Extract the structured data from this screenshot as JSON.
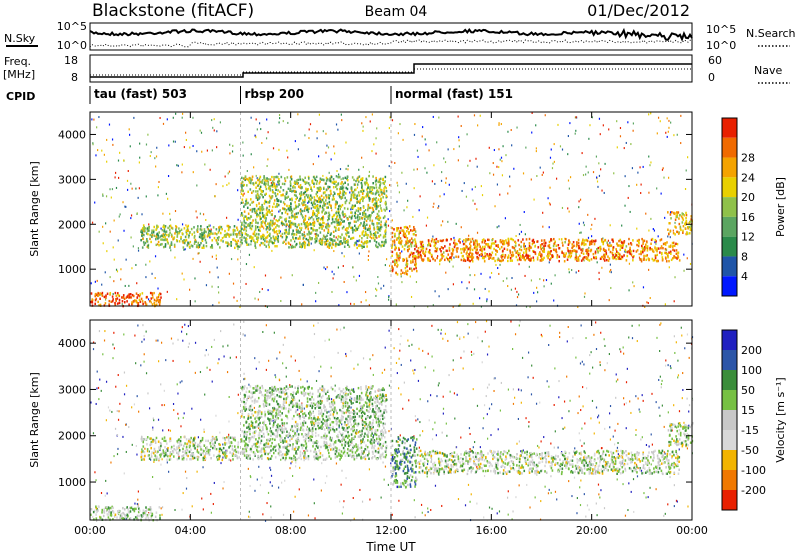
{
  "header": {
    "station": "Blackstone (fitACF)",
    "beam": "Beam 04",
    "date": "01/Dec/2012"
  },
  "summary_panels": {
    "nsky_label": "N.Sky",
    "nsearch_label": "N.Search",
    "noise_ticks": [
      "10^5",
      "10^0"
    ],
    "freq_label": "Freq.",
    "freq_unit": "[MHz]",
    "freq_ticks": [
      "18",
      "8"
    ],
    "nave_label": "Nave",
    "nave_ticks": [
      "60",
      "0"
    ],
    "cpid_label": "CPID"
  },
  "cpid_segments": [
    {
      "start_hour": 0,
      "label": "tau (fast) 503"
    },
    {
      "start_hour": 6,
      "label": "rbsp 200"
    },
    {
      "start_hour": 12,
      "label": "normal (fast) 151"
    }
  ],
  "colors": {
    "power_scale": [
      "#0018ff",
      "#1f55a8",
      "#2a8a4a",
      "#5ba561",
      "#8fc14a",
      "#e8d000",
      "#f4a300",
      "#f06a00",
      "#e82000"
    ],
    "velocity_scale": [
      "#2020c0",
      "#2c56a8",
      "#3a8d3a",
      "#76c043",
      "#c8c8c8",
      "#d8d8d8",
      "#f2b400",
      "#f07800",
      "#e82000"
    ]
  },
  "chart_data": [
    {
      "type": "heatmap",
      "title": "Power",
      "xlabel": "",
      "ylabel": "Slant Range [km]",
      "xlim": [
        0,
        24
      ],
      "ylim": [
        180,
        4500
      ],
      "x_ticks": [
        "00:00",
        "04:00",
        "08:00",
        "12:00",
        "16:00",
        "20:00",
        "00:00"
      ],
      "y_ticks": [
        1000,
        2000,
        3000,
        4000
      ],
      "colorbar": {
        "label": "Power [dB]",
        "ticks": [
          4,
          8,
          12,
          16,
          20,
          24,
          28
        ]
      },
      "features": [
        {
          "hours": [
            0.0,
            2.8
          ],
          "range_km": [
            200,
            500
          ],
          "level": 0.9
        },
        {
          "hours": [
            2.0,
            6.0
          ],
          "range_km": [
            1500,
            2000
          ],
          "level": 0.5
        },
        {
          "hours": [
            6.0,
            11.8
          ],
          "range_km": [
            1500,
            3100
          ],
          "level": 0.5
        },
        {
          "hours": [
            12.0,
            13.0
          ],
          "range_km": [
            900,
            2000
          ],
          "level": 0.75
        },
        {
          "hours": [
            13.0,
            23.5
          ],
          "range_km": [
            1200,
            1700
          ],
          "level": 0.8
        },
        {
          "hours": [
            23.0,
            24.0
          ],
          "range_km": [
            1800,
            2300
          ],
          "level": 0.7
        }
      ]
    },
    {
      "type": "heatmap",
      "title": "Velocity",
      "xlabel": "Time UT",
      "ylabel": "Slant Range [km]",
      "xlim": [
        0,
        24
      ],
      "ylim": [
        180,
        4500
      ],
      "x_ticks": [
        "00:00",
        "04:00",
        "08:00",
        "12:00",
        "16:00",
        "20:00",
        "00:00"
      ],
      "y_ticks": [
        1000,
        2000,
        3000,
        4000
      ],
      "colorbar": {
        "label": "Velocity [m s⁻¹]",
        "ticks": [
          200,
          100,
          50,
          15,
          -15,
          -50,
          -100,
          -200
        ]
      },
      "features": [
        {
          "hours": [
            0.0,
            2.8
          ],
          "range_km": [
            200,
            500
          ],
          "level": 0.45
        },
        {
          "hours": [
            2.0,
            6.0
          ],
          "range_km": [
            1500,
            2000
          ],
          "level": 0.5
        },
        {
          "hours": [
            6.0,
            11.8
          ],
          "range_km": [
            1500,
            3100
          ],
          "level": 0.45
        },
        {
          "hours": [
            12.0,
            13.0
          ],
          "range_km": [
            900,
            2000
          ],
          "level": 0.3
        },
        {
          "hours": [
            13.0,
            23.5
          ],
          "range_km": [
            1200,
            1700
          ],
          "level": 0.5
        },
        {
          "hours": [
            23.0,
            24.0
          ],
          "range_km": [
            1800,
            2300
          ],
          "level": 0.5
        }
      ]
    }
  ]
}
